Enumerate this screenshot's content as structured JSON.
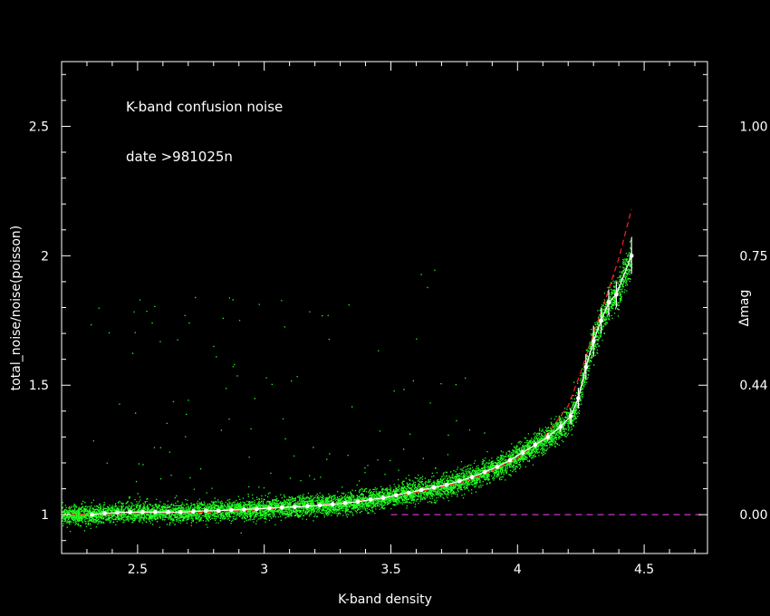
{
  "chart_data": {
    "type": "scatter",
    "title": "",
    "annotations": [
      "K-band confusion noise",
      "date >981025n"
    ],
    "xlabel": "K-band density",
    "ylabel": "total_noise/noise(poisson)",
    "y2label": "Δmag",
    "xlim": [
      2.2,
      4.75
    ],
    "ylim": [
      0.85,
      2.75
    ],
    "x_ticks": [
      "2.5",
      "3",
      "3.5",
      "4",
      "4.5"
    ],
    "x_tick_values": [
      2.5,
      3,
      3.5,
      4,
      4.5
    ],
    "y_ticks": [
      "1",
      "1.5",
      "2",
      "2.5"
    ],
    "y_tick_values": [
      1,
      1.5,
      2,
      2.5
    ],
    "y2_ticks": [
      "0.00",
      "0.44",
      "0.75",
      "1.00"
    ],
    "y2_tick_values": [
      1.0,
      1.5,
      2.0,
      2.5
    ],
    "grid": false,
    "colors": {
      "background": "#000000",
      "axes": "#ffffff",
      "scatter": "#22ff22",
      "binned": "#ffffff",
      "model": "#ff2020",
      "baseline": "#cc33cc"
    },
    "series": [
      {
        "kind": "binned_mean_with_errorbars",
        "x": [
          2.32,
          2.37,
          2.42,
          2.47,
          2.52,
          2.57,
          2.62,
          2.67,
          2.72,
          2.77,
          2.82,
          2.87,
          2.92,
          2.97,
          3.02,
          3.07,
          3.12,
          3.17,
          3.22,
          3.27,
          3.32,
          3.37,
          3.42,
          3.47,
          3.52,
          3.57,
          3.62,
          3.67,
          3.72,
          3.77,
          3.82,
          3.87,
          3.92,
          3.97,
          4.02,
          4.07,
          4.12,
          4.17,
          4.21,
          4.24,
          4.27,
          4.3,
          4.33,
          4.36,
          4.39,
          4.45
        ],
        "y": [
          1.0,
          1.005,
          1.008,
          1.01,
          1.01,
          1.01,
          1.01,
          1.01,
          1.012,
          1.015,
          1.015,
          1.018,
          1.02,
          1.022,
          1.025,
          1.028,
          1.03,
          1.033,
          1.036,
          1.04,
          1.045,
          1.05,
          1.058,
          1.065,
          1.075,
          1.085,
          1.095,
          1.105,
          1.115,
          1.13,
          1.145,
          1.165,
          1.185,
          1.21,
          1.24,
          1.27,
          1.3,
          1.34,
          1.38,
          1.45,
          1.57,
          1.67,
          1.75,
          1.82,
          1.85,
          2.0
        ],
        "yerr": [
          0,
          0,
          0,
          0,
          0,
          0,
          0,
          0,
          0,
          0,
          0,
          0,
          0,
          0,
          0,
          0,
          0,
          0,
          0,
          0,
          0,
          0,
          0,
          0,
          0,
          0,
          0,
          0,
          0,
          0,
          0,
          0,
          0,
          0,
          0.01,
          0.012,
          0.015,
          0.02,
          0.03,
          0.04,
          0.05,
          0.06,
          0.05,
          0.05,
          0.05,
          0.07
        ]
      },
      {
        "kind": "model_dashed",
        "x": [
          2.2,
          2.5,
          2.8,
          3.0,
          3.2,
          3.4,
          3.6,
          3.8,
          3.9,
          4.0,
          4.1,
          4.2,
          4.25,
          4.3,
          4.35,
          4.4,
          4.45
        ],
        "y": [
          1.0,
          1.005,
          1.01,
          1.02,
          1.035,
          1.055,
          1.085,
          1.13,
          1.17,
          1.22,
          1.29,
          1.42,
          1.55,
          1.7,
          1.84,
          1.99,
          2.18
        ]
      },
      {
        "kind": "baseline_dashed",
        "x": [
          3.5,
          4.75
        ],
        "y": [
          1.0,
          1.0
        ]
      }
    ]
  }
}
